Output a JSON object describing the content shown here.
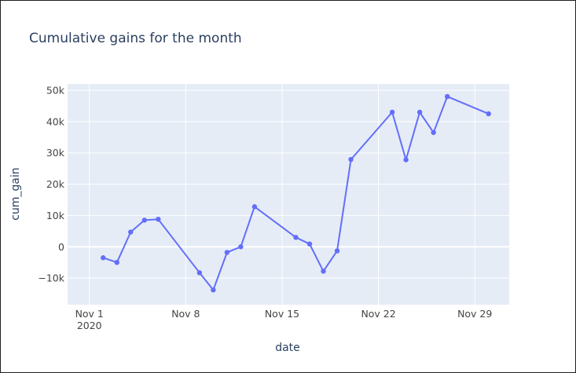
{
  "chart_data": {
    "type": "line",
    "title": "Cumulative gains for the month",
    "xlabel": "date",
    "ylabel": "cum_gain",
    "x_range": [
      "2020-10-30T10:00",
      "2020-12-01T12:00"
    ],
    "ylim": [
      -18500,
      52000
    ],
    "x_ticks": [
      {
        "date": "2020-11-01",
        "label": "Nov 1",
        "sublabel": "2020"
      },
      {
        "date": "2020-11-08",
        "label": "Nov 8",
        "sublabel": ""
      },
      {
        "date": "2020-11-15",
        "label": "Nov 15",
        "sublabel": ""
      },
      {
        "date": "2020-11-22",
        "label": "Nov 22",
        "sublabel": ""
      },
      {
        "date": "2020-11-29",
        "label": "Nov 29",
        "sublabel": ""
      }
    ],
    "y_ticks": [
      {
        "value": -10000,
        "label": "−10k"
      },
      {
        "value": 0,
        "label": "0"
      },
      {
        "value": 10000,
        "label": "10k"
      },
      {
        "value": 20000,
        "label": "20k"
      },
      {
        "value": 30000,
        "label": "30k"
      },
      {
        "value": 40000,
        "label": "40k"
      },
      {
        "value": 50000,
        "label": "50k"
      }
    ],
    "grid": true,
    "colors": {
      "line": "#636efa",
      "plot_bg": "#e5ecf6",
      "grid": "#ffffff",
      "text": "#2a3f5f",
      "tick": "#444444"
    },
    "points": [
      {
        "x": "2020-11-02",
        "y": -3500
      },
      {
        "x": "2020-11-03",
        "y": -5000
      },
      {
        "x": "2020-11-04",
        "y": 4700
      },
      {
        "x": "2020-11-05",
        "y": 8500
      },
      {
        "x": "2020-11-06",
        "y": 8800
      },
      {
        "x": "2020-11-09",
        "y": -8300
      },
      {
        "x": "2020-11-10",
        "y": -13800
      },
      {
        "x": "2020-11-11",
        "y": -1800
      },
      {
        "x": "2020-11-12",
        "y": 0
      },
      {
        "x": "2020-11-13",
        "y": 12800
      },
      {
        "x": "2020-11-16",
        "y": 3000
      },
      {
        "x": "2020-11-17",
        "y": 900
      },
      {
        "x": "2020-11-18",
        "y": -7800
      },
      {
        "x": "2020-11-19",
        "y": -1300
      },
      {
        "x": "2020-11-20",
        "y": 27900
      },
      {
        "x": "2020-11-23",
        "y": 43000
      },
      {
        "x": "2020-11-24",
        "y": 27800
      },
      {
        "x": "2020-11-25",
        "y": 43000
      },
      {
        "x": "2020-11-26",
        "y": 36500
      },
      {
        "x": "2020-11-27",
        "y": 48000
      },
      {
        "x": "2020-11-30",
        "y": 42500
      }
    ]
  }
}
